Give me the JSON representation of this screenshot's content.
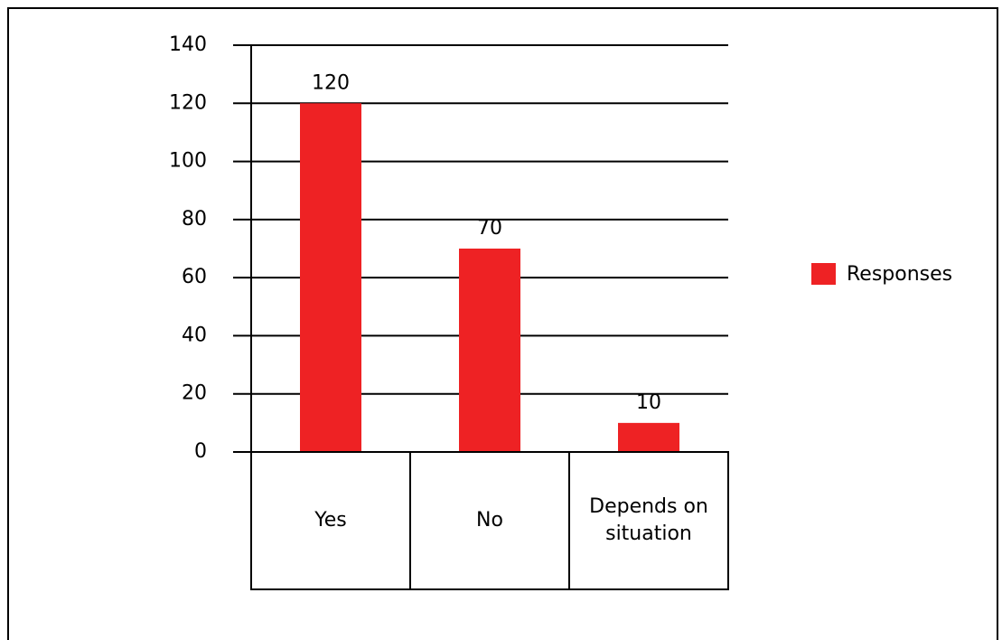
{
  "chart_data": {
    "type": "bar",
    "categories": [
      "Yes",
      "No",
      "Depends on situation"
    ],
    "category_lines": [
      [
        "Yes"
      ],
      [
        "No"
      ],
      [
        "Depends on",
        "situation"
      ]
    ],
    "series": [
      {
        "name": "Responses",
        "values": [
          120,
          70,
          10
        ],
        "data_labels": [
          "120",
          "70",
          "10"
        ]
      }
    ],
    "ylim": [
      0,
      140
    ],
    "yticks": [
      0,
      20,
      40,
      60,
      80,
      100,
      120,
      140
    ],
    "grid": true,
    "legend_position": "right",
    "colors": {
      "bar": "#EE2224",
      "text": "#000000",
      "axis": "#000000"
    }
  }
}
